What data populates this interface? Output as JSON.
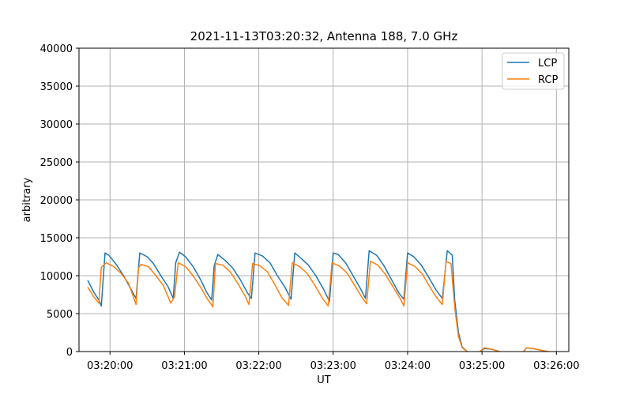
{
  "chart_data": {
    "type": "line",
    "title": "2021-11-13T03:20:32, Antenna 188, 7.0 GHz",
    "xlabel": "UT",
    "ylabel": "arbitrary",
    "xlim": [
      "03:19:35",
      "03:26:10"
    ],
    "ylim": [
      0,
      40000
    ],
    "x_ticks": [
      "03:20:00",
      "03:21:00",
      "03:22:00",
      "03:23:00",
      "03:24:00",
      "03:25:00",
      "03:26:00"
    ],
    "y_ticks": [
      0,
      5000,
      10000,
      15000,
      20000,
      25000,
      30000,
      35000,
      40000
    ],
    "grid": true,
    "legend_position": "top-right",
    "series": [
      {
        "name": "LCP",
        "color": "#1f77b4",
        "points": [
          [
            "03:19:42",
            9400
          ],
          [
            "03:19:47",
            7800
          ],
          [
            "03:19:51",
            6800
          ],
          [
            "03:19:53",
            6000
          ],
          [
            "03:19:56",
            13000
          ],
          [
            "03:19:59",
            12700
          ],
          [
            "03:20:05",
            11500
          ],
          [
            "03:20:11",
            10000
          ],
          [
            "03:20:17",
            8200
          ],
          [
            "03:20:21",
            7000
          ],
          [
            "03:20:24",
            13000
          ],
          [
            "03:20:30",
            12500
          ],
          [
            "03:20:35",
            11600
          ],
          [
            "03:20:41",
            10000
          ],
          [
            "03:20:47",
            8500
          ],
          [
            "03:20:51",
            7000
          ],
          [
            "03:20:53",
            11700
          ],
          [
            "03:20:56",
            13100
          ],
          [
            "03:21:01",
            12500
          ],
          [
            "03:21:07",
            11200
          ],
          [
            "03:21:13",
            9500
          ],
          [
            "03:21:18",
            7800
          ],
          [
            "03:21:22",
            6800
          ],
          [
            "03:21:24",
            11300
          ],
          [
            "03:21:27",
            12800
          ],
          [
            "03:21:33",
            12000
          ],
          [
            "03:21:39",
            11000
          ],
          [
            "03:21:45",
            9500
          ],
          [
            "03:21:51",
            7700
          ],
          [
            "03:21:54",
            7000
          ],
          [
            "03:21:57",
            13000
          ],
          [
            "03:22:03",
            12600
          ],
          [
            "03:22:09",
            11700
          ],
          [
            "03:22:15",
            10000
          ],
          [
            "03:22:21",
            8500
          ],
          [
            "03:22:26",
            6900
          ],
          [
            "03:22:29",
            13000
          ],
          [
            "03:22:34",
            12300
          ],
          [
            "03:22:40",
            11400
          ],
          [
            "03:22:46",
            10000
          ],
          [
            "03:22:52",
            8300
          ],
          [
            "03:22:57",
            6600
          ],
          [
            "03:23:00",
            13000
          ],
          [
            "03:23:04",
            12800
          ],
          [
            "03:23:10",
            11700
          ],
          [
            "03:23:16",
            10000
          ],
          [
            "03:23:22",
            8300
          ],
          [
            "03:23:26",
            7000
          ],
          [
            "03:23:29",
            13300
          ],
          [
            "03:23:35",
            12700
          ],
          [
            "03:23:41",
            11300
          ],
          [
            "03:23:47",
            9500
          ],
          [
            "03:23:53",
            7700
          ],
          [
            "03:23:57",
            6900
          ],
          [
            "03:24:00",
            13000
          ],
          [
            "03:24:05",
            12500
          ],
          [
            "03:24:11",
            11400
          ],
          [
            "03:24:17",
            9800
          ],
          [
            "03:24:23",
            8100
          ],
          [
            "03:24:28",
            7000
          ],
          [
            "03:24:32",
            13300
          ],
          [
            "03:24:36",
            12700
          ],
          [
            "03:24:38",
            6800
          ],
          [
            "03:24:41",
            2500
          ],
          [
            "03:24:44",
            600
          ],
          [
            "03:24:48",
            0
          ],
          [
            "03:24:53",
            -200
          ],
          [
            "03:24:56",
            -300
          ],
          [
            "03:25:02",
            400
          ],
          [
            "03:25:08",
            300
          ],
          [
            "03:25:14",
            0
          ],
          [
            "03:25:20",
            -200
          ],
          [
            "03:25:26",
            -300
          ],
          [
            "03:25:32",
            -300
          ],
          [
            "03:25:36",
            500
          ],
          [
            "03:25:41",
            400
          ],
          [
            "03:25:47",
            200
          ],
          [
            "03:25:53",
            0
          ],
          [
            "03:25:58",
            -200
          ]
        ]
      },
      {
        "name": "RCP",
        "color": "#ff7f0e",
        "points": [
          [
            "03:19:42",
            8500
          ],
          [
            "03:19:47",
            7200
          ],
          [
            "03:19:51",
            6400
          ],
          [
            "03:19:53",
            11100
          ],
          [
            "03:19:57",
            11700
          ],
          [
            "03:20:03",
            11200
          ],
          [
            "03:20:09",
            10300
          ],
          [
            "03:20:15",
            9000
          ],
          [
            "03:20:21",
            6200
          ],
          [
            "03:20:23",
            11000
          ],
          [
            "03:20:25",
            11500
          ],
          [
            "03:20:31",
            11200
          ],
          [
            "03:20:37",
            10000
          ],
          [
            "03:20:43",
            8700
          ],
          [
            "03:20:49",
            6400
          ],
          [
            "03:20:52",
            7200
          ],
          [
            "03:20:55",
            11700
          ],
          [
            "03:21:01",
            11200
          ],
          [
            "03:21:07",
            10000
          ],
          [
            "03:21:13",
            8500
          ],
          [
            "03:21:19",
            6800
          ],
          [
            "03:21:23",
            5900
          ],
          [
            "03:21:25",
            11600
          ],
          [
            "03:21:31",
            11400
          ],
          [
            "03:21:37",
            10500
          ],
          [
            "03:21:43",
            9000
          ],
          [
            "03:21:49",
            7300
          ],
          [
            "03:21:52",
            6200
          ],
          [
            "03:21:55",
            11600
          ],
          [
            "03:22:01",
            11300
          ],
          [
            "03:22:07",
            10500
          ],
          [
            "03:22:13",
            8800
          ],
          [
            "03:22:19",
            7000
          ],
          [
            "03:22:24",
            6100
          ],
          [
            "03:22:27",
            11700
          ],
          [
            "03:22:33",
            11200
          ],
          [
            "03:22:39",
            10300
          ],
          [
            "03:22:45",
            8800
          ],
          [
            "03:22:51",
            7100
          ],
          [
            "03:22:56",
            6000
          ],
          [
            "03:22:59",
            11700
          ],
          [
            "03:23:05",
            11300
          ],
          [
            "03:23:11",
            10400
          ],
          [
            "03:23:17",
            8800
          ],
          [
            "03:23:23",
            7200
          ],
          [
            "03:23:27",
            6300
          ],
          [
            "03:23:30",
            11900
          ],
          [
            "03:23:36",
            11400
          ],
          [
            "03:23:42",
            10200
          ],
          [
            "03:23:48",
            8600
          ],
          [
            "03:23:54",
            7000
          ],
          [
            "03:23:57",
            6000
          ],
          [
            "03:24:00",
            11700
          ],
          [
            "03:24:06",
            11200
          ],
          [
            "03:24:12",
            10200
          ],
          [
            "03:24:18",
            8500
          ],
          [
            "03:24:24",
            7000
          ],
          [
            "03:24:28",
            6200
          ],
          [
            "03:24:31",
            11900
          ],
          [
            "03:24:35",
            11600
          ],
          [
            "03:24:38",
            5800
          ],
          [
            "03:24:41",
            2000
          ],
          [
            "03:24:44",
            500
          ],
          [
            "03:24:48",
            0
          ],
          [
            "03:24:53",
            -200
          ],
          [
            "03:24:56",
            -300
          ],
          [
            "03:25:02",
            500
          ],
          [
            "03:25:08",
            300
          ],
          [
            "03:25:14",
            0
          ],
          [
            "03:25:20",
            -200
          ],
          [
            "03:25:26",
            -300
          ],
          [
            "03:25:32",
            -300
          ],
          [
            "03:25:36",
            500
          ],
          [
            "03:25:41",
            400
          ],
          [
            "03:25:47",
            200
          ],
          [
            "03:25:53",
            0
          ],
          [
            "03:25:58",
            -200
          ]
        ]
      }
    ]
  }
}
